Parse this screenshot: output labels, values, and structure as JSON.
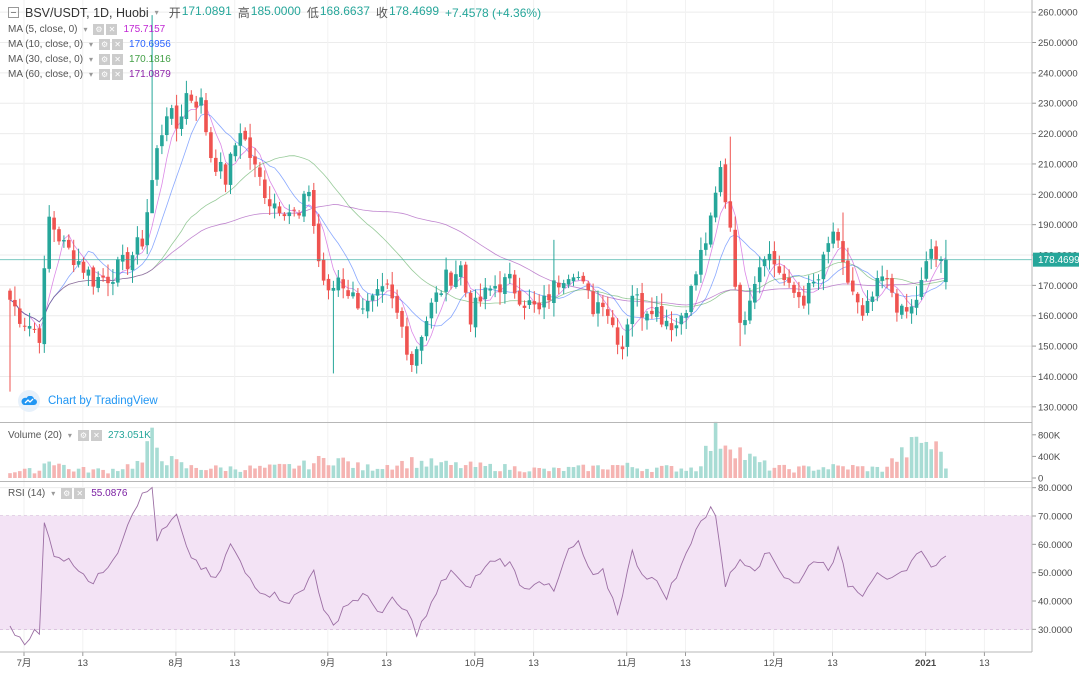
{
  "header": {
    "symbol": "BSV/USDT, 1D, Huobi",
    "open_label": "开",
    "open": "171.0891",
    "high_label": "高",
    "high": "185.0000",
    "low_label": "低",
    "low": "168.6637",
    "close_label": "收",
    "close": "178.4699",
    "change": "+7.4578 (+4.36%)"
  },
  "indicators": [
    {
      "label": "MA (5, close, 0)",
      "value": "175.7157",
      "color": "#c026d3"
    },
    {
      "label": "MA (10, close, 0)",
      "value": "170.6956",
      "color": "#2962ff"
    },
    {
      "label": "MA (30, close, 0)",
      "value": "170.1816",
      "color": "#43a047"
    },
    {
      "label": "MA (60, close, 0)",
      "value": "171.0879",
      "color": "#8e24aa"
    }
  ],
  "volume_legend": {
    "label": "Volume (20)",
    "value": "273.051K",
    "color": "#26a69a"
  },
  "rsi_legend": {
    "label": "RSI (14)",
    "value": "55.0876",
    "color": "#7b1fa2"
  },
  "branding": "Chart by TradingView",
  "price_axis": [
    "260.0000",
    "250.0000",
    "240.0000",
    "230.0000",
    "220.0000",
    "210.0000",
    "200.0000",
    "190.0000",
    "180.0000",
    "170.0000",
    "160.0000",
    "150.0000",
    "140.0000",
    "130.0000"
  ],
  "current_price_label": "178.4699",
  "volume_axis": [
    "800K",
    "400K",
    "0"
  ],
  "rsi_axis": [
    "80.0000",
    "70.0000",
    "60.0000",
    "50.0000",
    "40.0000",
    "30.0000"
  ],
  "time_axis": [
    "7月",
    "13",
    "8月",
    "13",
    "9月",
    "13",
    "10月",
    "13",
    "11月",
    "13",
    "12月",
    "13",
    "2021",
    "13"
  ],
  "colors": {
    "up": "#26a69a",
    "down": "#ef5350",
    "vol_up": "#a8dcd4",
    "vol_down": "#f5b4b2",
    "rsi_band": "#f3e3f5",
    "rsi_line": "#9c6fa4",
    "grid": "#ececec",
    "axis_text": "#4a4a4a",
    "ma5": "#c026d3",
    "ma10": "#2962ff",
    "ma30": "#43a047",
    "ma60": "#8e24aa"
  },
  "chart_data": {
    "type": "candlestick",
    "title": "BSV/USDT, 1D, Huobi",
    "ylim": [
      125,
      264
    ],
    "rsi_ylim": [
      22,
      82
    ],
    "volume_ylim": [
      0,
      1000
    ],
    "rsi_bands": [
      30,
      70
    ],
    "x_ticks": [
      {
        "label": "7月",
        "day": 0
      },
      {
        "label": "13",
        "day": 12
      },
      {
        "label": "8月",
        "day": 31
      },
      {
        "label": "13",
        "day": 43
      },
      {
        "label": "9月",
        "day": 62
      },
      {
        "label": "13",
        "day": 74
      },
      {
        "label": "10月",
        "day": 92
      },
      {
        "label": "13",
        "day": 104
      },
      {
        "label": "11月",
        "day": 123
      },
      {
        "label": "13",
        "day": 135
      },
      {
        "label": "12月",
        "day": 153
      },
      {
        "label": "13",
        "day": 165
      },
      {
        "label": "2021",
        "day": 184
      },
      {
        "label": "13",
        "day": 196
      }
    ],
    "close_key_points": [
      [
        -1,
        168
      ],
      [
        2,
        160
      ],
      [
        6,
        154
      ],
      [
        8,
        192
      ],
      [
        11,
        183
      ],
      [
        14,
        178
      ],
      [
        17,
        172
      ],
      [
        20,
        173
      ],
      [
        24,
        178
      ],
      [
        27,
        185
      ],
      [
        30,
        214
      ],
      [
        32,
        228
      ],
      [
        34,
        222
      ],
      [
        36,
        233
      ],
      [
        39,
        230
      ],
      [
        41,
        213
      ],
      [
        44,
        205
      ],
      [
        47,
        222
      ],
      [
        50,
        208
      ],
      [
        53,
        198
      ],
      [
        56,
        196
      ],
      [
        59,
        192
      ],
      [
        61,
        202
      ],
      [
        63,
        178
      ],
      [
        65,
        166
      ],
      [
        67,
        173
      ],
      [
        70,
        166
      ],
      [
        73,
        163
      ],
      [
        77,
        168
      ],
      [
        80,
        156
      ],
      [
        82,
        145
      ],
      [
        84,
        155
      ],
      [
        86,
        163
      ],
      [
        89,
        172
      ],
      [
        92,
        176
      ],
      [
        94,
        160
      ],
      [
        96,
        165
      ],
      [
        99,
        170
      ],
      [
        102,
        171
      ],
      [
        105,
        165
      ],
      [
        108,
        161
      ],
      [
        110,
        167
      ],
      [
        113,
        174
      ],
      [
        115,
        176
      ],
      [
        117,
        169
      ],
      [
        119,
        163
      ],
      [
        121,
        166
      ],
      [
        123,
        157
      ],
      [
        125,
        150
      ],
      [
        127,
        168
      ],
      [
        129,
        162
      ],
      [
        131,
        164
      ],
      [
        133,
        160
      ],
      [
        136,
        157
      ],
      [
        139,
        168
      ],
      [
        141,
        180
      ],
      [
        143,
        190
      ],
      [
        145,
        208
      ],
      [
        147,
        190
      ],
      [
        149,
        155
      ],
      [
        151,
        168
      ],
      [
        154,
        182
      ],
      [
        157,
        175
      ],
      [
        159,
        168
      ],
      [
        162,
        166
      ],
      [
        165,
        172
      ],
      [
        168,
        188
      ],
      [
        170,
        175
      ],
      [
        172,
        168
      ],
      [
        174,
        158
      ],
      [
        176,
        166
      ],
      [
        178,
        172
      ],
      [
        180,
        168
      ],
      [
        182,
        160
      ],
      [
        184,
        162
      ],
      [
        186,
        170
      ],
      [
        188,
        182
      ],
      [
        190,
        176
      ],
      [
        191,
        178.47
      ]
    ],
    "volume_key_points": [
      [
        0,
        130
      ],
      [
        6,
        160
      ],
      [
        8,
        420
      ],
      [
        12,
        180
      ],
      [
        20,
        150
      ],
      [
        27,
        320
      ],
      [
        29,
        800
      ],
      [
        32,
        380
      ],
      [
        36,
        220
      ],
      [
        42,
        200
      ],
      [
        52,
        200
      ],
      [
        60,
        260
      ],
      [
        66,
        420
      ],
      [
        72,
        200
      ],
      [
        82,
        330
      ],
      [
        90,
        260
      ],
      [
        100,
        220
      ],
      [
        110,
        160
      ],
      [
        120,
        220
      ],
      [
        124,
        260
      ],
      [
        130,
        200
      ],
      [
        140,
        200
      ],
      [
        144,
        860
      ],
      [
        147,
        760
      ],
      [
        150,
        450
      ],
      [
        155,
        220
      ],
      [
        160,
        180
      ],
      [
        166,
        220
      ],
      [
        172,
        220
      ],
      [
        178,
        180
      ],
      [
        186,
        780
      ],
      [
        190,
        540
      ],
      [
        191,
        273
      ]
    ],
    "rsi_key_points": [
      [
        0,
        30
      ],
      [
        3,
        26
      ],
      [
        5,
        29
      ],
      [
        6,
        28
      ],
      [
        7,
        67
      ],
      [
        9,
        57
      ],
      [
        11,
        55
      ],
      [
        14,
        52
      ],
      [
        17,
        46
      ],
      [
        20,
        53
      ],
      [
        22,
        58
      ],
      [
        25,
        72
      ],
      [
        27,
        77
      ],
      [
        29,
        80
      ],
      [
        30,
        62
      ],
      [
        32,
        66
      ],
      [
        34,
        70
      ],
      [
        36,
        58
      ],
      [
        39,
        52
      ],
      [
        42,
        47
      ],
      [
        45,
        60
      ],
      [
        48,
        50
      ],
      [
        51,
        44
      ],
      [
        54,
        42
      ],
      [
        57,
        40
      ],
      [
        60,
        44
      ],
      [
        62,
        52
      ],
      [
        64,
        36
      ],
      [
        66,
        31
      ],
      [
        68,
        38
      ],
      [
        72,
        42
      ],
      [
        76,
        36
      ],
      [
        78,
        40
      ],
      [
        81,
        36
      ],
      [
        83,
        29
      ],
      [
        85,
        35
      ],
      [
        88,
        46
      ],
      [
        90,
        51
      ],
      [
        93,
        44
      ],
      [
        96,
        50
      ],
      [
        99,
        55
      ],
      [
        102,
        53
      ],
      [
        105,
        44
      ],
      [
        108,
        48
      ],
      [
        111,
        43
      ],
      [
        114,
        58
      ],
      [
        116,
        60
      ],
      [
        119,
        48
      ],
      [
        121,
        50
      ],
      [
        124,
        36
      ],
      [
        127,
        57
      ],
      [
        129,
        50
      ],
      [
        131,
        48
      ],
      [
        134,
        42
      ],
      [
        137,
        52
      ],
      [
        140,
        66
      ],
      [
        143,
        72
      ],
      [
        144,
        71
      ],
      [
        146,
        46
      ],
      [
        149,
        55
      ],
      [
        152,
        52
      ],
      [
        155,
        57
      ],
      [
        158,
        49
      ],
      [
        161,
        46
      ],
      [
        164,
        55
      ],
      [
        167,
        52
      ],
      [
        169,
        58
      ],
      [
        171,
        46
      ],
      [
        174,
        43
      ],
      [
        177,
        51
      ],
      [
        180,
        47
      ],
      [
        183,
        50
      ],
      [
        186,
        59
      ],
      [
        188,
        51
      ],
      [
        190,
        56
      ],
      [
        191,
        55.09
      ]
    ],
    "moving_averages": [
      {
        "name": "MA (5, close, 0)",
        "period": 5
      },
      {
        "name": "MA (10, close, 0)",
        "period": 10
      },
      {
        "name": "MA (30, close, 0)",
        "period": 30
      },
      {
        "name": "MA (60, close, 0)",
        "period": 60
      }
    ],
    "last": {
      "open": 171.0891,
      "high": 185.0,
      "low": 168.6637,
      "close": 178.4699
    }
  }
}
